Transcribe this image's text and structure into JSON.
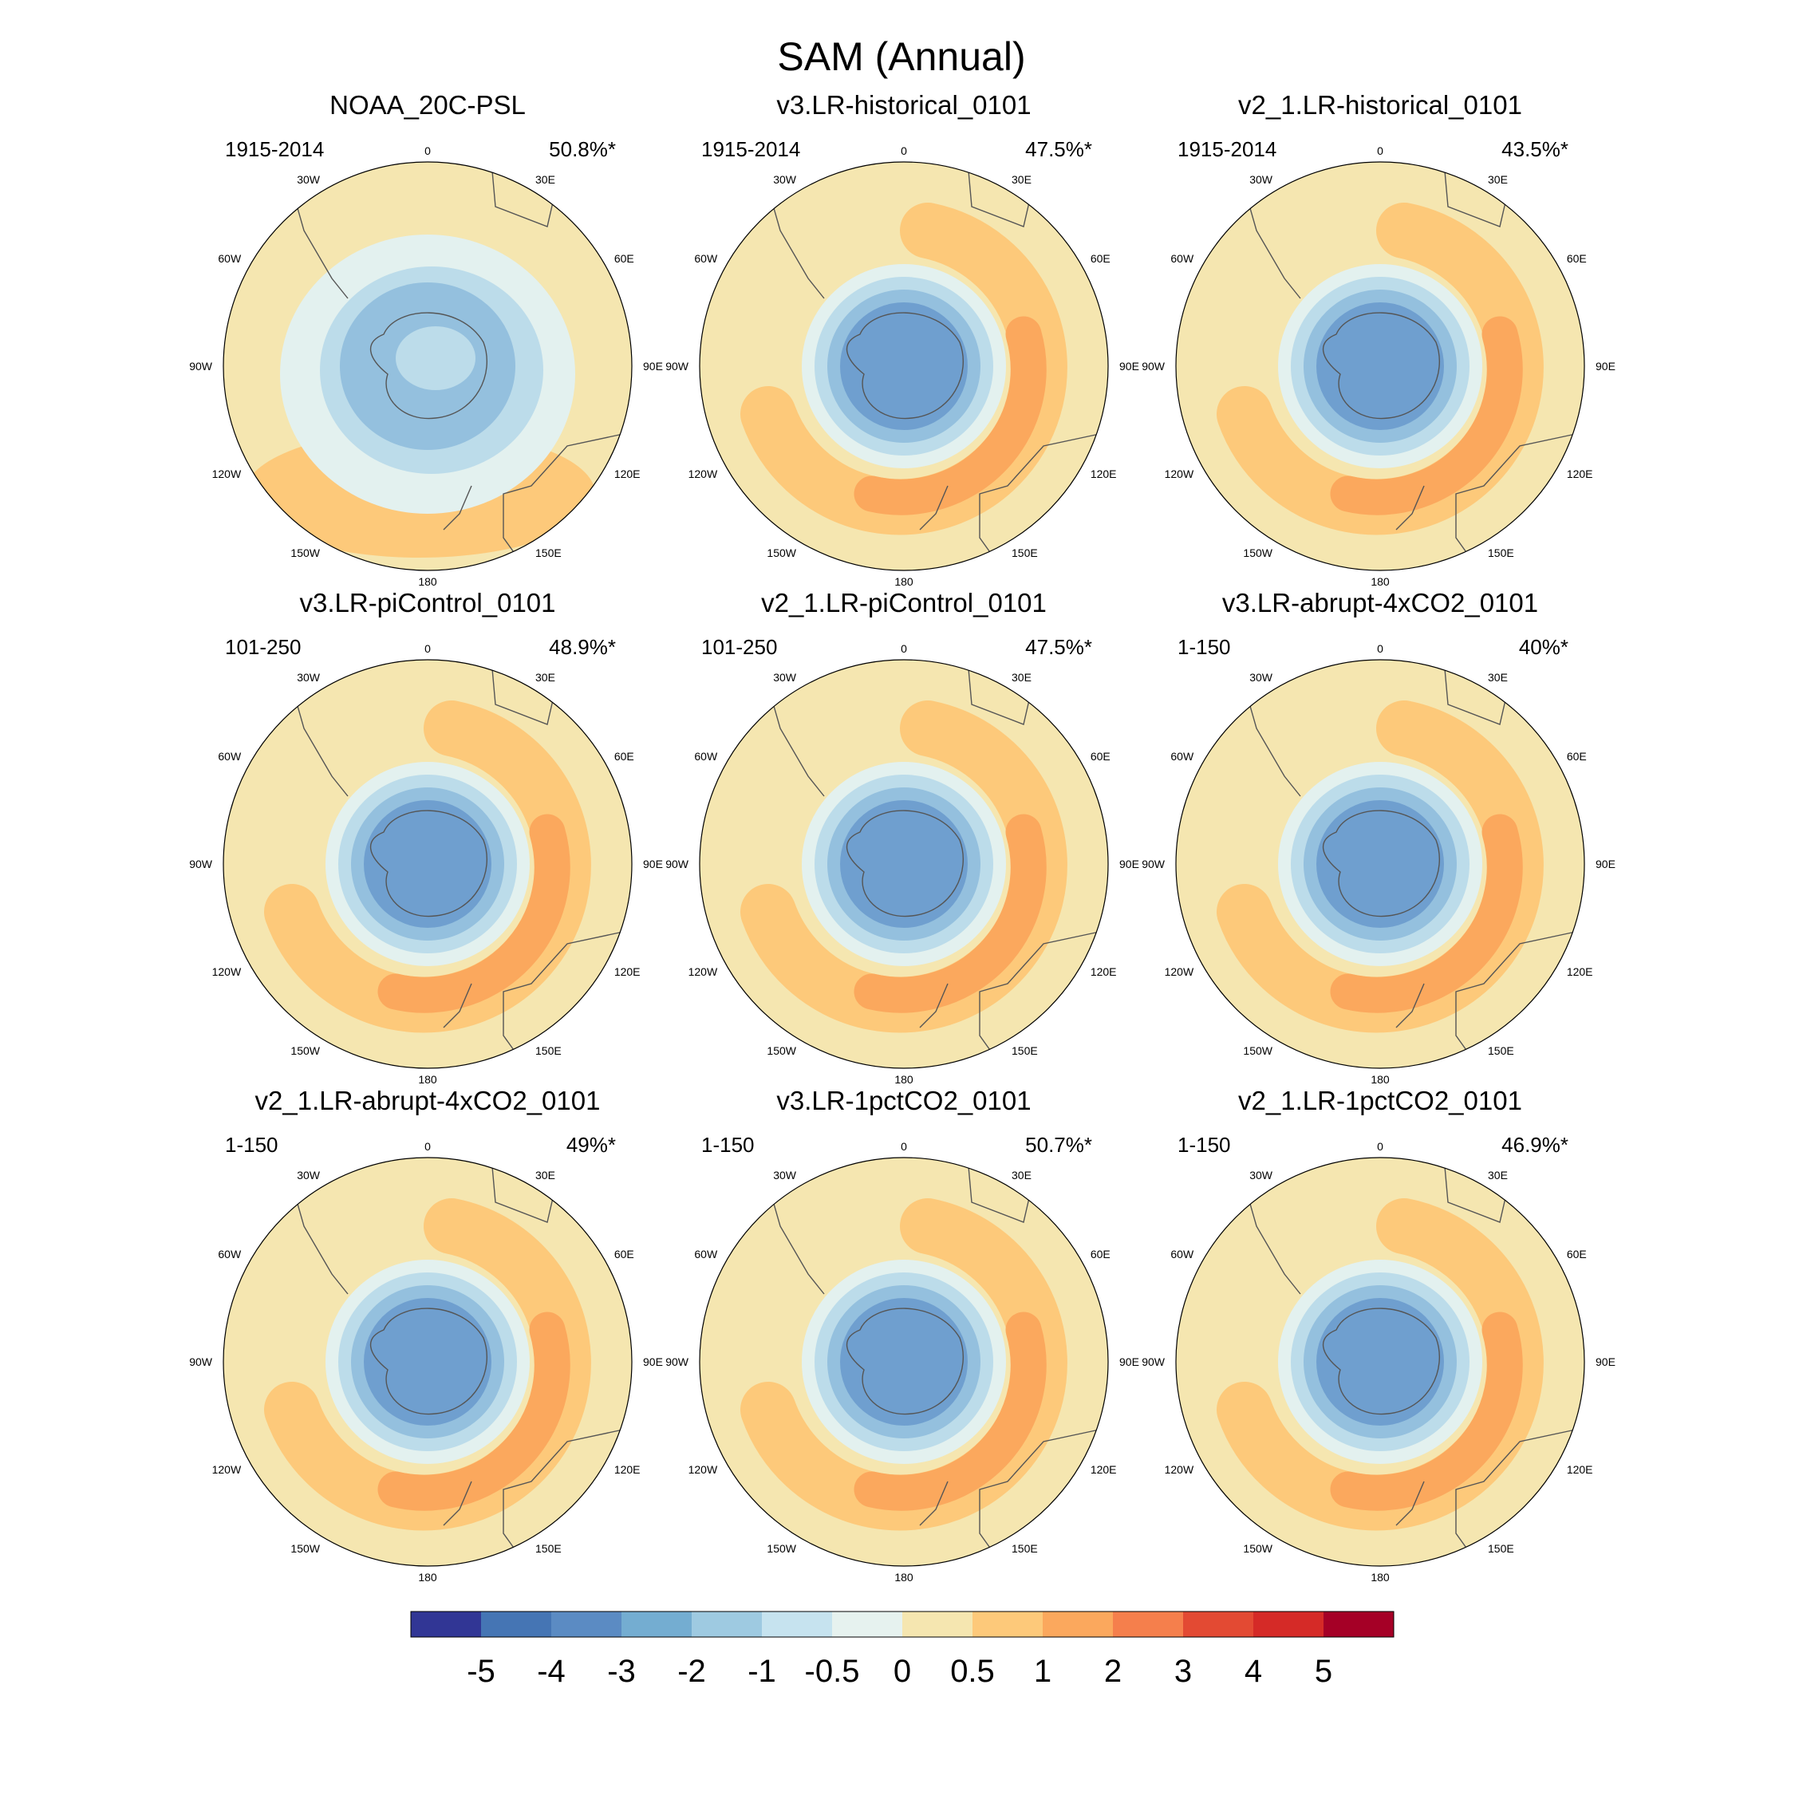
{
  "figure": {
    "title": "SAM (Annual)",
    "longitude_labels": [
      "0",
      "30E",
      "60E",
      "90E",
      "120E",
      "150E",
      "180",
      "150W",
      "120W",
      "90W",
      "60W",
      "30W"
    ]
  },
  "panels": [
    {
      "title": "NOAA_20C-PSL",
      "period": "1915-2014",
      "pct": "50.8%*",
      "pattern": "obs"
    },
    {
      "title": "v3.LR-historical_0101",
      "period": "1915-2014",
      "pct": "47.5%*",
      "pattern": "model"
    },
    {
      "title": "v2_1.LR-historical_0101",
      "period": "1915-2014",
      "pct": "43.5%*",
      "pattern": "model"
    },
    {
      "title": "v3.LR-piControl_0101",
      "period": "101-250",
      "pct": "48.9%*",
      "pattern": "model"
    },
    {
      "title": "v2_1.LR-piControl_0101",
      "period": "101-250",
      "pct": "47.5%*",
      "pattern": "model"
    },
    {
      "title": "v3.LR-abrupt-4xCO2_0101",
      "period": "1-150",
      "pct": "40%*",
      "pattern": "model"
    },
    {
      "title": "v2_1.LR-abrupt-4xCO2_0101",
      "period": "1-150",
      "pct": "49%*",
      "pattern": "model"
    },
    {
      "title": "v3.LR-1pctCO2_0101",
      "period": "1-150",
      "pct": "50.7%*",
      "pattern": "model"
    },
    {
      "title": "v2_1.LR-1pctCO2_0101",
      "period": "1-150",
      "pct": "46.9%*",
      "pattern": "model"
    }
  ],
  "colorbar": {
    "labels": [
      "-5",
      "-4",
      "-3",
      "-2",
      "-1",
      "-0.5",
      "0",
      "0.5",
      "1",
      "2",
      "3",
      "4",
      "5"
    ],
    "colors": [
      "#313695",
      "#4575b4",
      "#5b8bc3",
      "#74add1",
      "#9ecae1",
      "#c6e3ef",
      "#e6f2ef",
      "#f5e6b0",
      "#fdc97a",
      "#fba85d",
      "#f57f4c",
      "#e34a33",
      "#d52a27",
      "#a50026"
    ]
  },
  "field_colors": {
    "ice": "#7fadd5",
    "c1": "#6f9fcf",
    "c2": "#94c0de",
    "c3": "#bcdcea",
    "c4": "#e3f1ef",
    "bg": "#f5e6b0",
    "p1": "#fdc97a",
    "p2": "#fba85d"
  }
}
